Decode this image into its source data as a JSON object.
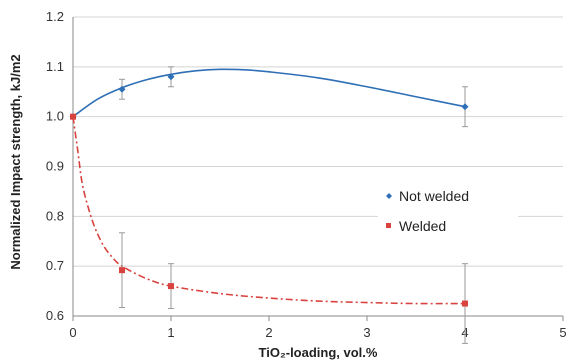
{
  "chart_data": {
    "type": "scatter",
    "xlabel": "TiO₂-loading, vol.%",
    "ylabel": "Normalized Impact strength, kJ/m2",
    "xlim": [
      0,
      5
    ],
    "ylim": [
      0.6,
      1.2
    ],
    "x_ticks": [
      "0",
      "1",
      "2",
      "3",
      "4",
      "5"
    ],
    "y_ticks": [
      "0.6",
      "0.7",
      "0.8",
      "0.9",
      "1.0",
      "1.1",
      "1.2"
    ],
    "grid": "horizontal",
    "legend_position": "right",
    "series": [
      {
        "name": "Not welded",
        "color": "#2e6fb5",
        "marker": "diamond",
        "line": "solid-smooth",
        "x": [
          0,
          0.5,
          1,
          4
        ],
        "y": [
          1.0,
          1.055,
          1.08,
          1.02
        ],
        "error": [
          0.0,
          0.02,
          0.02,
          0.04
        ],
        "fit_x": [
          0,
          0.25,
          0.5,
          0.75,
          1,
          1.25,
          1.5,
          1.75,
          2,
          2.5,
          3,
          3.5,
          4
        ],
        "fit_y": [
          1.0,
          1.035,
          1.058,
          1.074,
          1.085,
          1.092,
          1.095,
          1.094,
          1.09,
          1.078,
          1.06,
          1.04,
          1.02
        ]
      },
      {
        "name": "Welded",
        "color": "#d9433f",
        "marker": "square",
        "line": "dash-dot-smooth",
        "x": [
          0,
          0.5,
          1,
          4
        ],
        "y": [
          1.0,
          0.692,
          0.66,
          0.625
        ],
        "error": [
          0.0,
          0.075,
          0.045,
          0.08
        ],
        "fit_x": [
          0,
          0.05,
          0.1,
          0.2,
          0.3,
          0.4,
          0.5,
          0.75,
          1,
          1.5,
          2,
          2.5,
          3,
          3.5,
          4
        ],
        "fit_y": [
          1.0,
          0.93,
          0.86,
          0.79,
          0.745,
          0.718,
          0.7,
          0.675,
          0.66,
          0.645,
          0.636,
          0.63,
          0.627,
          0.625,
          0.625
        ]
      }
    ]
  }
}
